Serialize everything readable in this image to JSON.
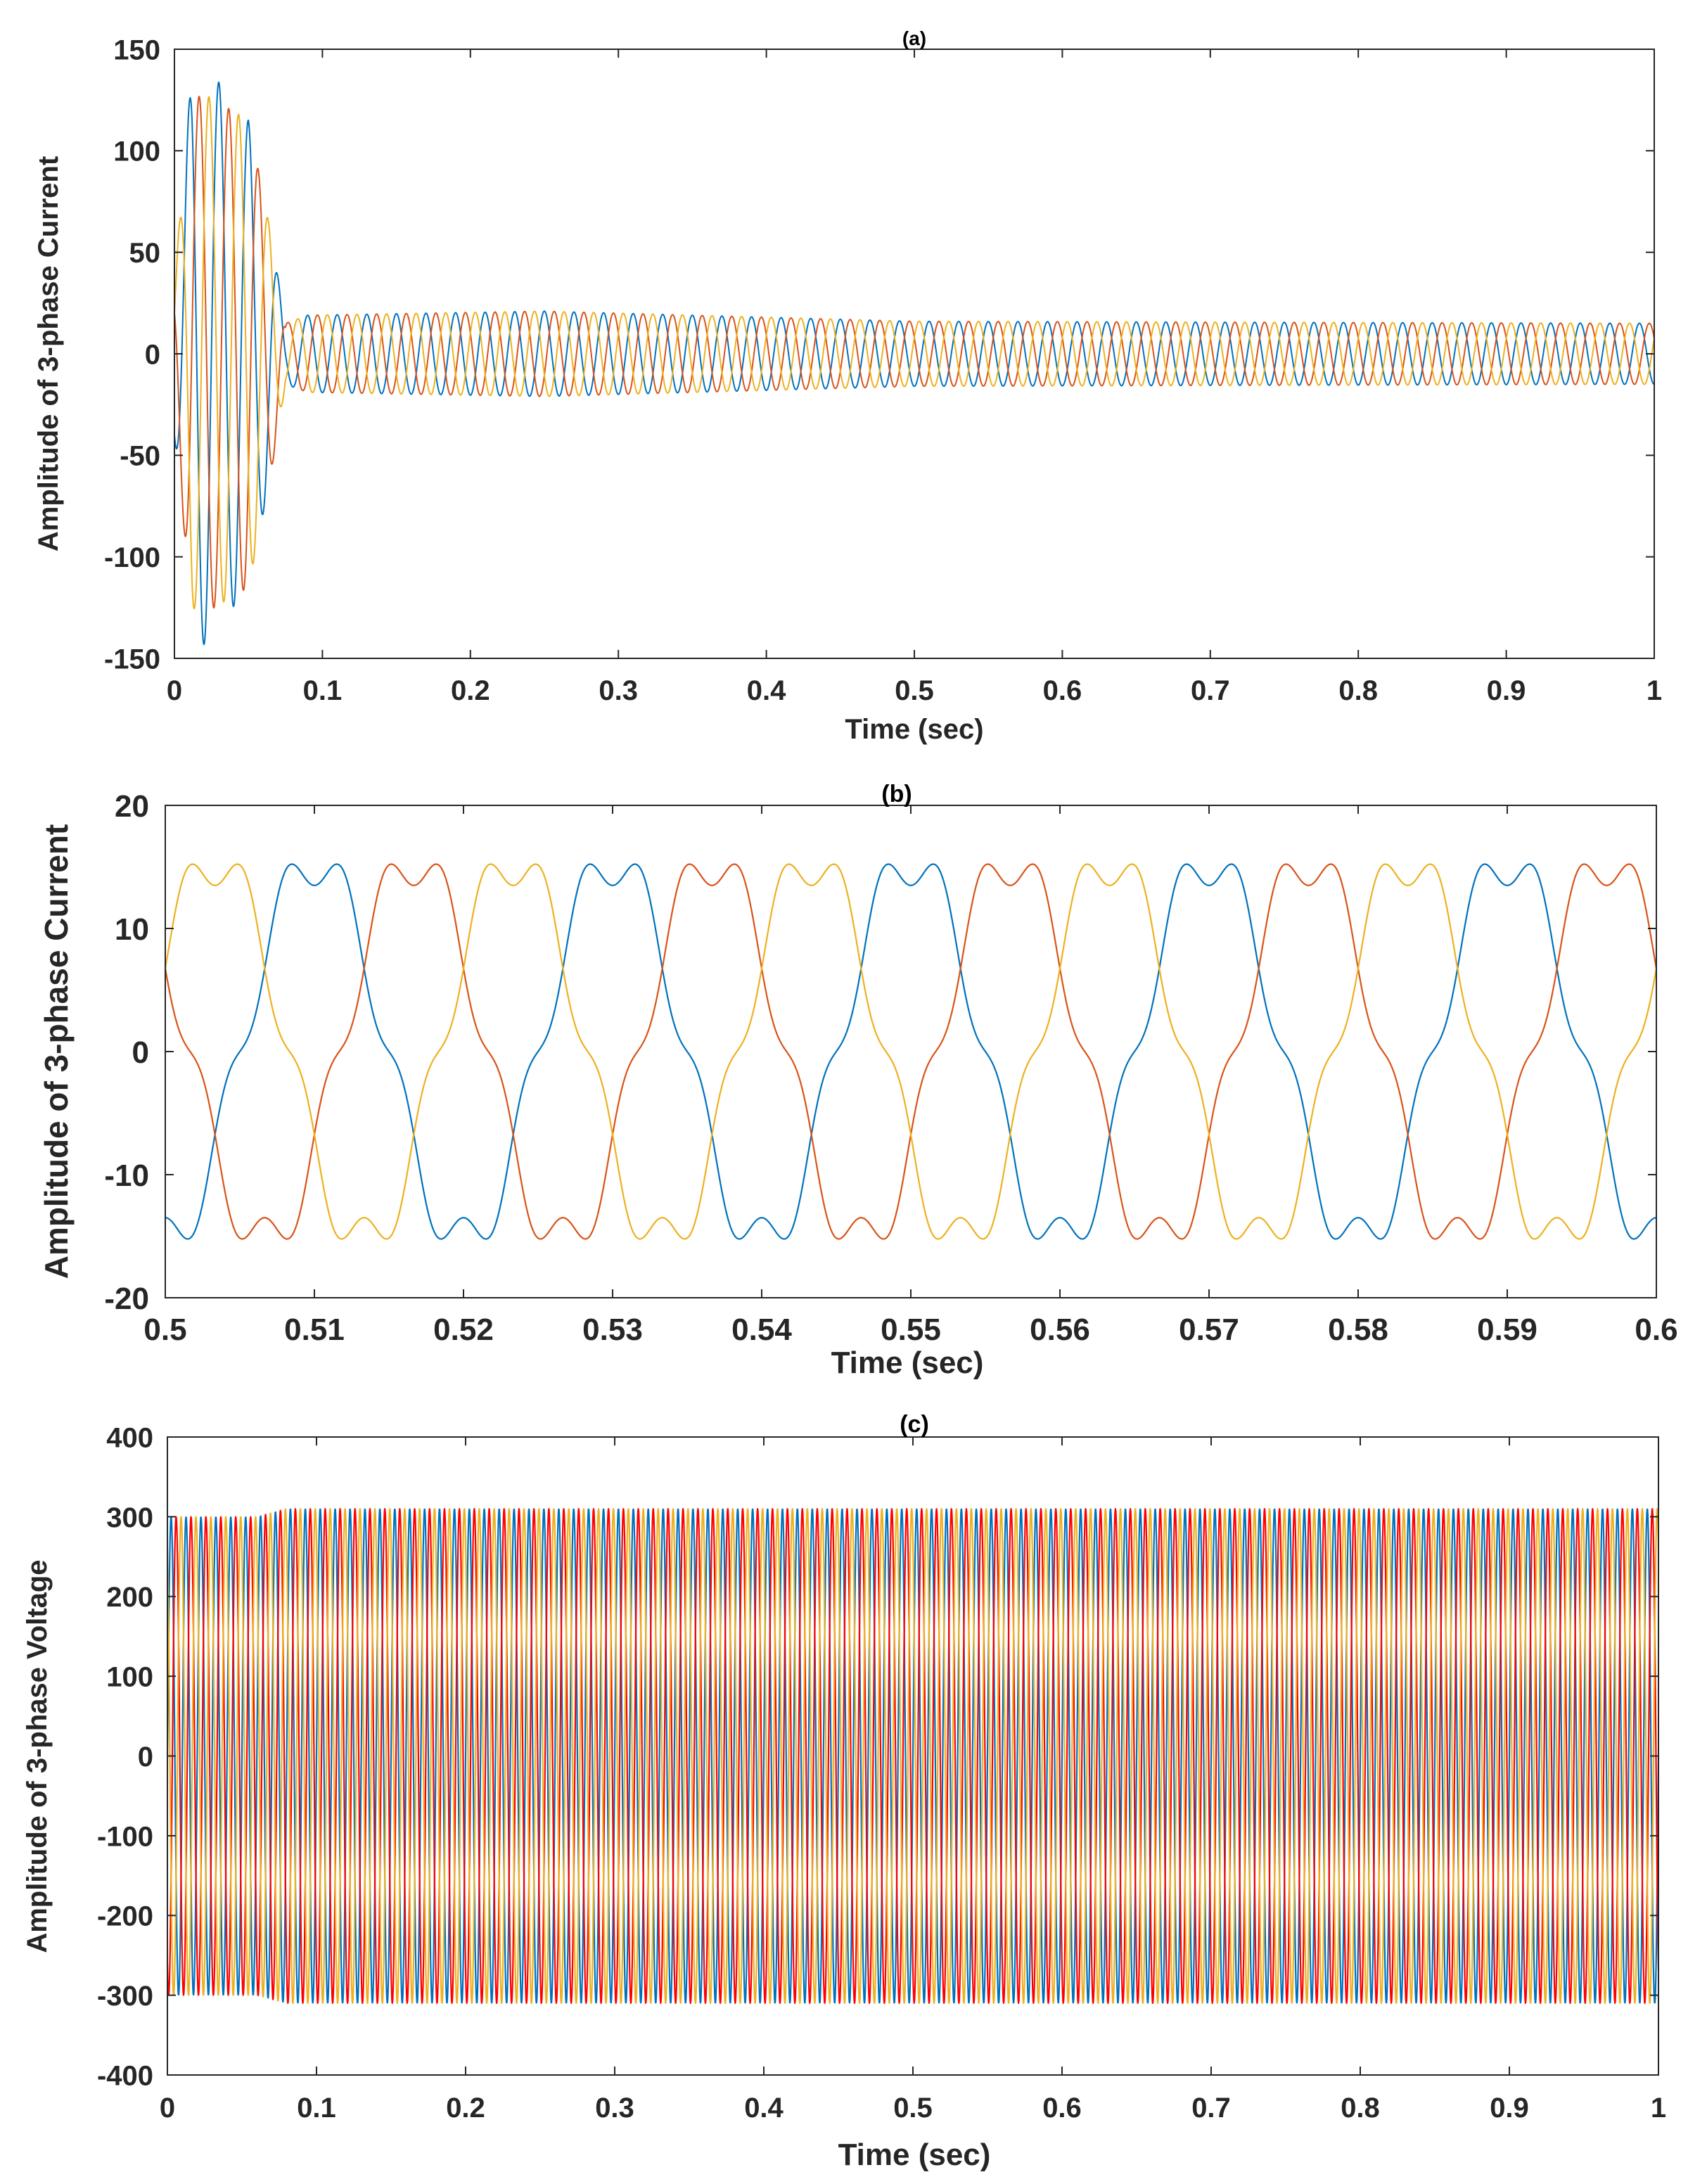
{
  "chart_data": [
    {
      "type": "line",
      "title": "(a)",
      "xlabel": "Time (sec)",
      "ylabel": "Amplitude of 3-phase Current",
      "xlim": [
        0,
        1
      ],
      "ylim": [
        -150,
        150
      ],
      "xticks": [
        0,
        0.1,
        0.2,
        0.3,
        0.4,
        0.5,
        0.6,
        0.7,
        0.8,
        0.9,
        1
      ],
      "xtick_labels": [
        "0",
        "0.1",
        "0.2",
        "0.3",
        "0.4",
        "0.5",
        "0.6",
        "0.7",
        "0.8",
        "0.9",
        "1"
      ],
      "yticks": [
        150,
        100,
        50,
        0,
        -50,
        -100,
        -150
      ],
      "ytick_labels": [
        "150",
        "100",
        "50",
        "0",
        "-50",
        "-100",
        "-150"
      ],
      "grid": false,
      "legend": "none",
      "series": [
        {
          "color": "#0072BD",
          "frequency_hz": 50,
          "phase_deg": -90,
          "envelope": {
            "t": [
              0,
              0.012,
              0.018,
              0.05,
              0.065,
              0.075,
              0.09,
              0.25,
              0.5,
              1.0
            ],
            "amp": [
              40,
              140,
              145,
              115,
              60,
              15,
              19,
              21,
              16,
              15
            ]
          }
        },
        {
          "color": "#D95319",
          "frequency_hz": 50,
          "phase_deg": 150,
          "envelope": {
            "t": [
              0,
              0.012,
              0.02,
              0.05,
              0.065,
              0.075,
              0.09,
              0.25,
              0.5,
              1.0
            ],
            "amp": [
              40,
              125,
              128,
              115,
              60,
              15,
              19,
              21,
              16,
              15
            ]
          }
        },
        {
          "color": "#EDB120",
          "frequency_hz": 50,
          "phase_deg": 30,
          "envelope": {
            "t": [
              0,
              0.012,
              0.02,
              0.05,
              0.065,
              0.075,
              0.09,
              0.25,
              0.5,
              1.0
            ],
            "amp": [
              40,
              125,
              128,
              115,
              60,
              15,
              19,
              21,
              16,
              15
            ]
          }
        }
      ]
    },
    {
      "type": "line",
      "title": "(b)",
      "xlabel": "Time (sec)",
      "ylabel": "Amplitude of 3-phase Current",
      "xlim": [
        0.5,
        0.6
      ],
      "ylim": [
        -20,
        20
      ],
      "xticks": [
        0.5,
        0.51,
        0.52,
        0.53,
        0.54,
        0.55,
        0.56,
        0.57,
        0.58,
        0.59,
        0.6
      ],
      "xtick_labels": [
        "0.5",
        "0.51",
        "0.52",
        "0.53",
        "0.54",
        "0.55",
        "0.56",
        "0.57",
        "0.58",
        "0.59",
        "0.6"
      ],
      "yticks": [
        20,
        10,
        0,
        -10,
        -20
      ],
      "ytick_labels": [
        "20",
        "10",
        "0",
        "-10",
        "-20"
      ],
      "grid": false,
      "legend": "none",
      "series": [
        {
          "color": "#0072BD",
          "frequency_hz": 50,
          "phase_deg": -90,
          "amplitude": 15.5,
          "harmonic5_amplitude": 2.0
        },
        {
          "color": "#D95319",
          "frequency_hz": 50,
          "phase_deg": 150,
          "amplitude": 15.5,
          "harmonic5_amplitude": 2.0
        },
        {
          "color": "#EDB120",
          "frequency_hz": 50,
          "phase_deg": 30,
          "amplitude": 15.5,
          "harmonic5_amplitude": 2.0
        }
      ]
    },
    {
      "type": "line",
      "title": "(c)",
      "xlabel": "Time (sec)",
      "ylabel": "Amplitude of 3-phase Voltage",
      "xlim": [
        0,
        1
      ],
      "ylim": [
        -400,
        400
      ],
      "xticks": [
        0,
        0.1,
        0.2,
        0.3,
        0.4,
        0.5,
        0.6,
        0.7,
        0.8,
        0.9,
        1
      ],
      "xtick_labels": [
        "0",
        "0.1",
        "0.2",
        "0.3",
        "0.4",
        "0.5",
        "0.6",
        "0.7",
        "0.8",
        "0.9",
        "1"
      ],
      "yticks": [
        400,
        300,
        200,
        100,
        0,
        -100,
        -200,
        -300,
        -400
      ],
      "ytick_labels": [
        "400",
        "300",
        "200",
        "100",
        "0",
        "-100",
        "-200",
        "-300",
        "-400"
      ],
      "grid": false,
      "legend": "none",
      "series": [
        {
          "color": "#0072BD",
          "frequency_hz": 100,
          "phase_deg": 0,
          "envelope": {
            "t": [
              0,
              0.06,
              0.08,
              1.0
            ],
            "amp": [
              300,
              300,
              310,
              310
            ]
          }
        },
        {
          "color": "#FF0000",
          "frequency_hz": 100,
          "phase_deg": -120,
          "envelope": {
            "t": [
              0,
              0.06,
              0.08,
              1.0
            ],
            "amp": [
              300,
              300,
              310,
              310
            ]
          }
        },
        {
          "color": "#EDB120",
          "frequency_hz": 100,
          "phase_deg": 120,
          "envelope": {
            "t": [
              0,
              0.06,
              0.08,
              1.0
            ],
            "amp": [
              300,
              300,
              310,
              310
            ]
          }
        }
      ]
    }
  ]
}
